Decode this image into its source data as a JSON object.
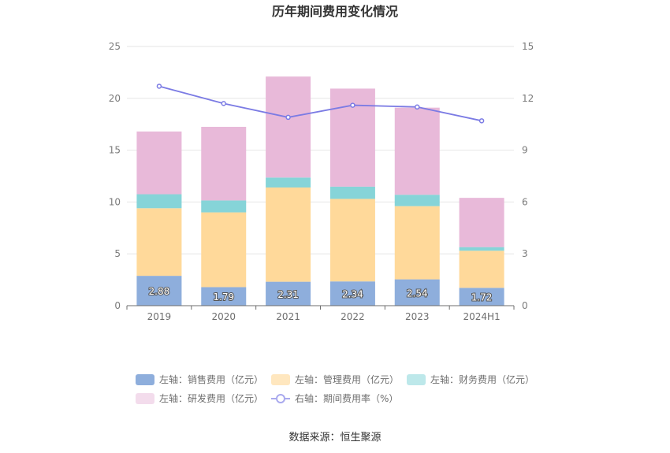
{
  "chart_data": {
    "type": "bar",
    "stacked": true,
    "title": "历年期间费用变化情况",
    "categories": [
      "2019",
      "2020",
      "2021",
      "2022",
      "2023",
      "2024H1"
    ],
    "series": [
      {
        "name": "左轴：销售费用（亿元）",
        "axis": "left",
        "type": "bar",
        "color": "#8eaedc",
        "legend_color": "#8eaedc",
        "values": [
          2.88,
          1.79,
          2.31,
          2.34,
          2.54,
          1.72
        ],
        "show_labels": true
      },
      {
        "name": "左轴：管理费用（亿元）",
        "axis": "left",
        "type": "bar",
        "color": "#ffd99a",
        "legend_color": "#ffe7bf",
        "values": [
          6.52,
          7.21,
          9.09,
          7.96,
          7.06,
          3.58
        ],
        "show_labels": false
      },
      {
        "name": "左轴：财务费用（亿元）",
        "axis": "left",
        "type": "bar",
        "color": "#86d4d8",
        "legend_color": "#bde8ea",
        "values": [
          1.35,
          1.15,
          0.96,
          1.18,
          1.1,
          0.35
        ],
        "show_labels": false
      },
      {
        "name": "左轴：研发费用（亿元）",
        "axis": "left",
        "type": "bar",
        "color": "#e8b9d9",
        "legend_color": "#f3dcec",
        "values": [
          6.05,
          7.1,
          9.74,
          9.46,
          8.4,
          4.75
        ],
        "show_labels": false
      },
      {
        "name": "右轴：期间费用率（%）",
        "axis": "right",
        "type": "line",
        "color": "#7b7be4",
        "legend_color": "#a9a9ee",
        "values": [
          12.7,
          11.7,
          10.9,
          11.6,
          11.5,
          10.7
        ]
      }
    ],
    "y_left": {
      "min": 0,
      "max": 25,
      "ticks": [
        0,
        5,
        10,
        15,
        20,
        25
      ]
    },
    "y_right": {
      "min": 0,
      "max": 15,
      "ticks": [
        0,
        3,
        6,
        9,
        12,
        15
      ]
    },
    "grid": true,
    "legend_position": "bottom"
  },
  "source": "数据来源：恒生聚源"
}
